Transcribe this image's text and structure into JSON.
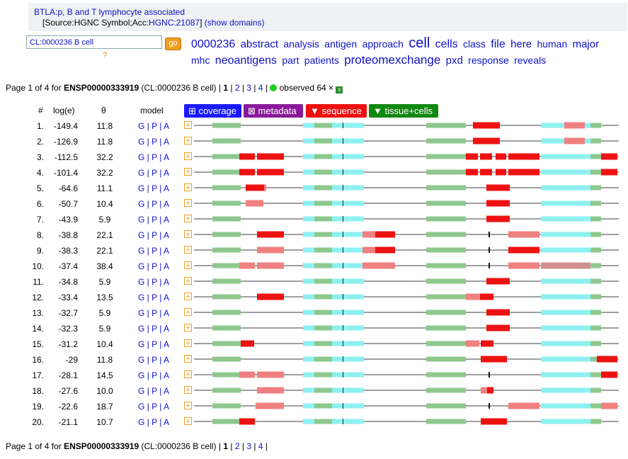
{
  "header": {
    "line1": "BTLA:p, B and T lymphocyte associated",
    "line2_prefix": "[Source:HGNC Symbol;Acc:",
    "line2_acc": "HGNC:21087",
    "line2_suffix": "]",
    "show_domains": "(show domains)"
  },
  "search": {
    "value": "CL:0000236 B cell",
    "go_label": "go",
    "help": "?"
  },
  "cloud": [
    {
      "w": "0000236",
      "s": 16
    },
    {
      "w": "abstract",
      "s": 15
    },
    {
      "w": "analysis",
      "s": 14
    },
    {
      "w": "antigen",
      "s": 14
    },
    {
      "w": "approach",
      "s": 14
    },
    {
      "w": "cell",
      "s": 20
    },
    {
      "w": "cells",
      "s": 16
    },
    {
      "w": "class",
      "s": 14
    },
    {
      "w": "file",
      "s": 16
    },
    {
      "w": "here",
      "s": 15
    },
    {
      "w": "human",
      "s": 14
    },
    {
      "w": "major",
      "s": 15
    },
    {
      "w": "mhc",
      "s": 14
    },
    {
      "w": "neoantigens",
      "s": 16
    },
    {
      "w": "part",
      "s": 14
    },
    {
      "w": "patients",
      "s": 14
    },
    {
      "w": "proteomexchange",
      "s": 17
    },
    {
      "w": "pxd",
      "s": 15
    },
    {
      "w": "response",
      "s": 14
    },
    {
      "w": "reveals",
      "s": 14
    }
  ],
  "pager": {
    "prefix": "Page 1 of 4 for ",
    "protein": "ENSP00000333919",
    "context": " (CL:0000236 B cell) | ",
    "current": "1",
    "sep": " | ",
    "pages": [
      "2",
      "3",
      "4"
    ],
    "tail": " |",
    "observed": "observed 64 ×"
  },
  "columns": {
    "num": "#",
    "loge": "log(e)",
    "theta": "θ",
    "model": "model"
  },
  "tabs": [
    {
      "label": "⊞ coverage",
      "color": "#1a1aff"
    },
    {
      "label": "⊠ metadata",
      "color": "#8a1a9a"
    },
    {
      "label": "▼ sequence",
      "color": "#ee1111"
    },
    {
      "label": "▼ tissue+cells",
      "color": "#118811"
    }
  ],
  "rows": [
    {
      "n": "1.",
      "loge": "-149.4",
      "theta": "11.8",
      "model": "G | P | A"
    },
    {
      "n": "2.",
      "loge": "-126.9",
      "theta": "11.8",
      "model": "G | P | A"
    },
    {
      "n": "3.",
      "loge": "-112.5",
      "theta": "32.2",
      "model": "G | P | A"
    },
    {
      "n": "4.",
      "loge": "-101.4",
      "theta": "32.2",
      "model": "G | P | A"
    },
    {
      "n": "5.",
      "loge": "-64.6",
      "theta": "11.1",
      "model": "G | P | A"
    },
    {
      "n": "6.",
      "loge": "-50.7",
      "theta": "10.4",
      "model": "G | P | A"
    },
    {
      "n": "7.",
      "loge": "-43.9",
      "theta": "5.9",
      "model": "G | P | A"
    },
    {
      "n": "8.",
      "loge": "-38.8",
      "theta": "22.1",
      "model": "G | P | A"
    },
    {
      "n": "9.",
      "loge": "-38.3",
      "theta": "22.1",
      "model": "G | P | A"
    },
    {
      "n": "10.",
      "loge": "-37.4",
      "theta": "38.4",
      "model": "G | P | A"
    },
    {
      "n": "11.",
      "loge": "-34.8",
      "theta": "5.9",
      "model": "G | P | A"
    },
    {
      "n": "12.",
      "loge": "-33.4",
      "theta": "13.5",
      "model": "G | P | A"
    },
    {
      "n": "13.",
      "loge": "-32.7",
      "theta": "5.9",
      "model": "G | P | A"
    },
    {
      "n": "14.",
      "loge": "-32.3",
      "theta": "5.9",
      "model": "G | P | A"
    },
    {
      "n": "15.",
      "loge": "-31.2",
      "theta": "10.4",
      "model": "G | P | A"
    },
    {
      "n": "16.",
      "loge": "-29",
      "theta": "11.8",
      "model": "G | P | A"
    },
    {
      "n": "17.",
      "loge": "-28.1",
      "theta": "14.5",
      "model": "G | P | A"
    },
    {
      "n": "18.",
      "loge": "-27.6",
      "theta": "10.0",
      "model": "G | P | A"
    },
    {
      "n": "19.",
      "loge": "-22.6",
      "theta": "18.7",
      "model": "G | P | A"
    },
    {
      "n": "20.",
      "loge": "-21.1",
      "theta": "10.7",
      "model": "G | P | A"
    }
  ],
  "colors": {
    "peptide": "#ee1111",
    "peptide_light": "#f08080",
    "domain_green": "#8ec88e",
    "domain_cyan": "#8ef0f0",
    "link": "#1010c8"
  }
}
